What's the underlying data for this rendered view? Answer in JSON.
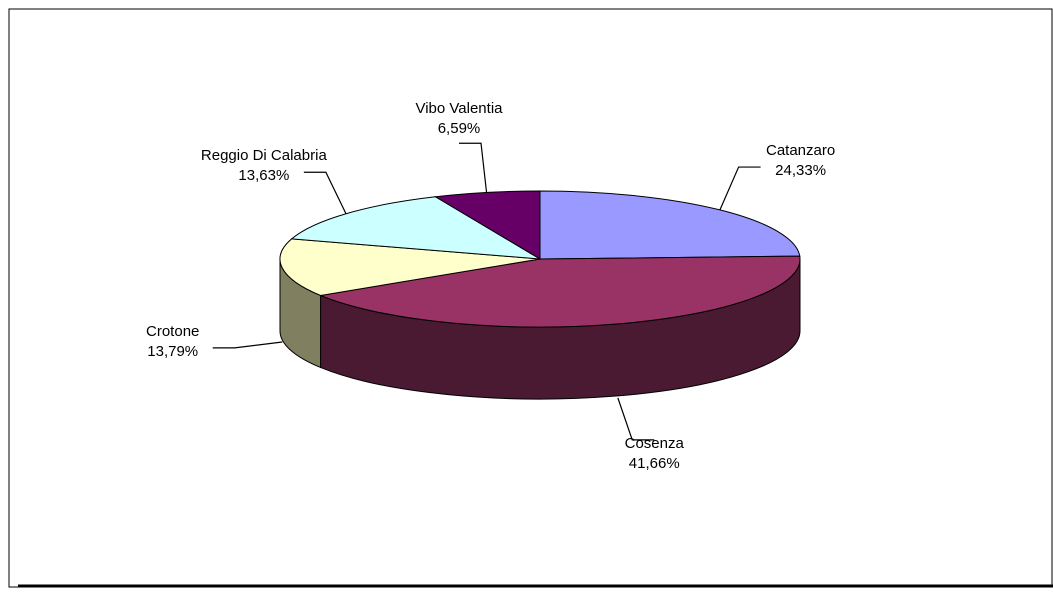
{
  "chart_data": {
    "type": "pie",
    "style": "3d",
    "title": "",
    "slices": [
      {
        "label": "Catanzaro",
        "value": 24.33,
        "value_text": "24,33%",
        "color": "#9999FF",
        "side_color": "#5C5C99"
      },
      {
        "label": "Cosenza",
        "value": 41.66,
        "value_text": "41,66%",
        "color": "#993366",
        "side_color": "#4A1A33"
      },
      {
        "label": "Crotone",
        "value": 13.79,
        "value_text": "13,79%",
        "color": "#FFFFCC",
        "side_color": "#808060"
      },
      {
        "label": "Reggio Di Calabria",
        "value": 13.63,
        "value_text": "13,63%",
        "color": "#CCFFFF",
        "side_color": "#6A8A8A"
      },
      {
        "label": "Vibo Valentia",
        "value": 6.59,
        "value_text": "6,59%",
        "color": "#660066",
        "side_color": "#330033"
      }
    ]
  }
}
